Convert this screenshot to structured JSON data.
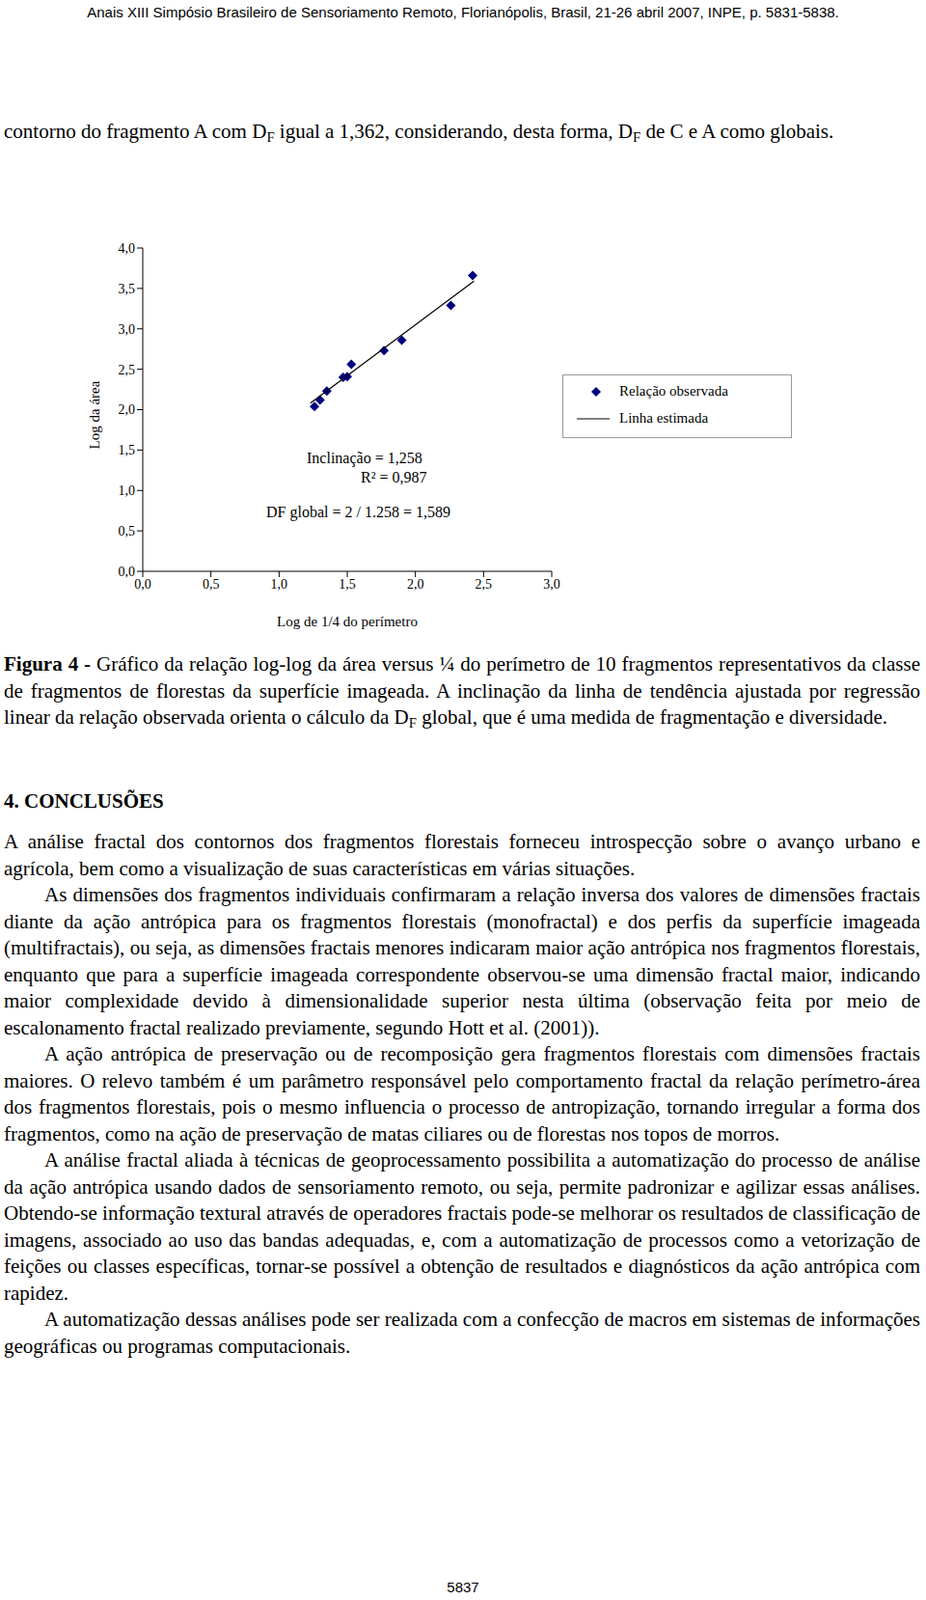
{
  "header": "Anais XIII Simpósio Brasileiro de Sensoriamento Remoto, Florianópolis, Brasil, 21-26 abril 2007, INPE, p. 5831-5838.",
  "intro": [
    "contorno do fragmento A com D",
    {
      "sub": "F"
    },
    " igual a 1,362, considerando, desta forma, D",
    {
      "sub": "F"
    },
    " de C e A como globais."
  ],
  "chart_data": {
    "type": "scatter",
    "x_label": "Log de 1/4 do perímetro",
    "y_label": "Log da área",
    "annotations": [
      "Inclinação = 1,258",
      "R² = 0,987",
      "DF global = 2 / 1.258 = 1,589"
    ],
    "xlim": [
      0,
      3
    ],
    "ylim": [
      0,
      4
    ],
    "xticks": [
      {
        "value": 0,
        "label": "0,0"
      },
      {
        "value": 0.5,
        "label": "0,5"
      },
      {
        "value": 1,
        "label": "1,0"
      },
      {
        "value": 1.5,
        "label": "1,5"
      },
      {
        "value": 2,
        "label": "2,0"
      },
      {
        "value": 2.5,
        "label": "2,5"
      },
      {
        "value": 3,
        "label": "3,0"
      }
    ],
    "yticks": [
      {
        "value": 0,
        "label": "0,0"
      },
      {
        "value": 0.5,
        "label": "0,5"
      },
      {
        "value": 1,
        "label": "1,0"
      },
      {
        "value": 1.5,
        "label": "1,5"
      },
      {
        "value": 2,
        "label": "2,0"
      },
      {
        "value": 2.5,
        "label": "2,5"
      },
      {
        "value": 3,
        "label": "3,0"
      },
      {
        "value": 3.5,
        "label": "3,5"
      },
      {
        "value": 4,
        "label": "4,0"
      }
    ],
    "grid": false,
    "series": [
      {
        "name": "Relação observada",
        "type": "scatter",
        "color": "#000080",
        "marker": "diamond",
        "x": [
          1.26,
          1.3,
          1.35,
          1.47,
          1.5,
          1.53,
          1.77,
          1.9,
          2.26,
          2.42
        ],
        "values": [
          2.04,
          2.12,
          2.23,
          2.4,
          2.41,
          2.56,
          2.73,
          2.86,
          3.29,
          3.66
        ]
      },
      {
        "name": "Linha estimada",
        "type": "line",
        "color": "#000000",
        "line_style": "solid",
        "x": [
          1.23,
          2.43
        ],
        "values": [
          2.08,
          3.59
        ]
      }
    ]
  },
  "caption": [
    {
      "b": "Figura 4 -"
    },
    "  Gráfico da relação log-log da área versus ¼ do perímetro de 10 fragmentos representativos da classe de fragmentos de florestas da superfície imageada. A inclinação da linha de tendência ajustada por regressão linear da relação observada orienta o cálculo da D",
    {
      "sub": "F"
    },
    " global, que é uma medida de fragmentação e diversidade."
  ],
  "section_title": "4. CONCLUSÕES",
  "paragraphs": [
    [
      "A análise fractal dos contornos dos fragmentos florestais forneceu introspecção sobre o avanço urbano e agrícola, bem como a visualização de suas características em várias situações."
    ],
    [
      "As dimensões dos fragmentos individuais confirmaram a relação inversa dos valores de dimensões fractais diante da ação antrópica para os fragmentos florestais (monofractal) e dos perfis da superfície imageada (multifractais), ou seja, as dimensões fractais menores indicaram maior ação antrópica nos fragmentos florestais, enquanto que para a superfície imageada correspondente observou-se uma dimensão fractal maior, indicando maior complexidade devido à dimensionalidade superior nesta última (observação feita por meio de escalonamento fractal realizado previamente, segundo Hott et al. (2001))."
    ],
    [
      "A ação antrópica de preservação ou de recomposição gera fragmentos florestais com dimensões fractais maiores. O relevo também é um parâmetro responsável pelo comportamento fractal da relação perímetro-área dos fragmentos florestais, pois o mesmo influencia o processo de antropização, tornando irregular a forma dos fragmentos, como na ação de preservação de matas ciliares ou de florestas nos topos de morros."
    ],
    [
      "A análise fractal aliada à técnicas de geoprocessamento possibilita a automatização do processo de análise da ação antrópica usando dados de sensoriamento remoto, ou seja, permite padronizar e agilizar essas análises. Obtendo-se informação textural através de operadores fractais pode-se melhorar os resultados de classificação de imagens, associado ao uso das bandas adequadas, e, com a automatização de processos como a vetorização de feições ou classes específicas, tornar-se possível a obtenção de resultados e diagnósticos da ação antrópica com rapidez."
    ],
    [
      "A automatização dessas análises pode ser realizada com a confecção de macros em sistemas de informações geográficas ou programas computacionais."
    ]
  ],
  "page_number": "5837"
}
